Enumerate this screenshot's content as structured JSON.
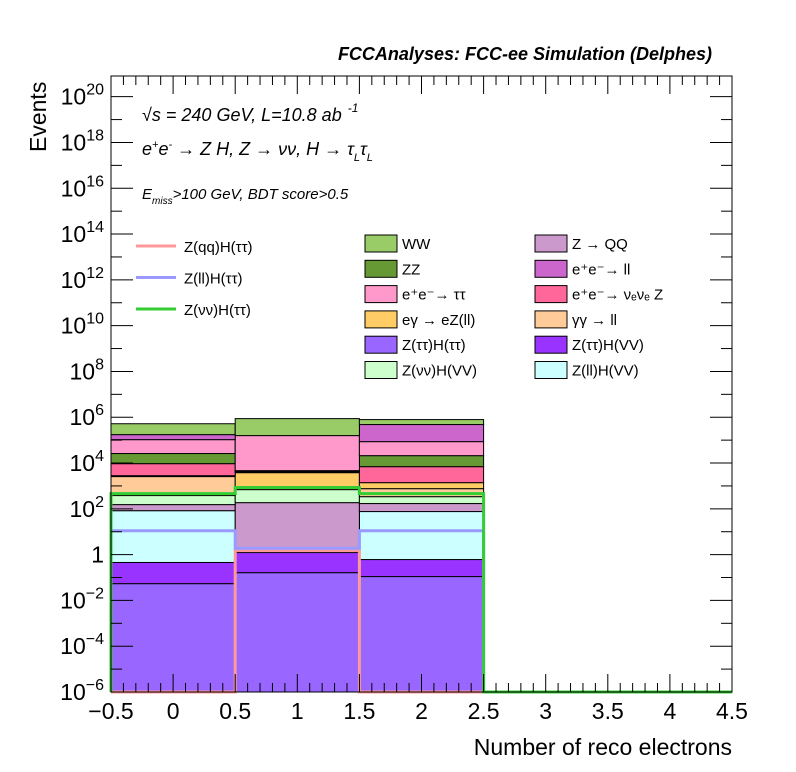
{
  "chart_data": {
    "type": "bar",
    "subtype": "stacked-histogram-log",
    "title": "FCCAnalyses: FCC-ee Simulation (Delphes)",
    "xlabel": "Number of reco electrons",
    "ylabel": "Events",
    "xlim": [
      -0.5,
      4.5
    ],
    "ylim": [
      1e-06,
      8e+20
    ],
    "yscale": "log",
    "grid": false,
    "x_ticks": [
      "−0.5",
      "0",
      "0.5",
      "1",
      "1.5",
      "2",
      "2.5",
      "3",
      "3.5",
      "4",
      "4.5"
    ],
    "x_tick_values": [
      -0.5,
      0,
      0.5,
      1,
      1.5,
      2,
      2.5,
      3,
      3.5,
      4,
      4.5
    ],
    "y_ticks": [
      {
        "value": 1e+20,
        "base": "10",
        "exp": "20"
      },
      {
        "value": 1e+18,
        "base": "10",
        "exp": "18"
      },
      {
        "value": 1e+16,
        "base": "10",
        "exp": "16"
      },
      {
        "value": 100000000000000.0,
        "base": "10",
        "exp": "14"
      },
      {
        "value": 1000000000000.0,
        "base": "10",
        "exp": "12"
      },
      {
        "value": 10000000000.0,
        "base": "10",
        "exp": "10"
      },
      {
        "value": 100000000.0,
        "base": "10",
        "exp": "8"
      },
      {
        "value": 1000000.0,
        "base": "10",
        "exp": "6"
      },
      {
        "value": 10000.0,
        "base": "10",
        "exp": "4"
      },
      {
        "value": 100.0,
        "base": "10",
        "exp": "2"
      },
      {
        "value": 1,
        "base": "1",
        "exp": ""
      },
      {
        "value": 0.01,
        "base": "10",
        "exp": "−2"
      },
      {
        "value": 0.0001,
        "base": "10",
        "exp": "−4"
      },
      {
        "value": 1e-06,
        "base": "10",
        "exp": "−6"
      }
    ],
    "bin_edges": [
      -0.5,
      0.5,
      1.5,
      2.5,
      3.5,
      4.5
    ],
    "annotations": {
      "line1_sqrt": "√",
      "line1_s": "s",
      "line1": " = 240 GeV, L=10.8 ab",
      "line1_sup": "-1",
      "line2_pre": "e",
      "line2_plus": "+",
      "line2_e2": "e",
      "line2_minus": "-",
      "line2_rest": " → Z H, Z  → νν, H → τ",
      "line2_sub1": "L",
      "line2_tau2": "τ",
      "line2_sub2": "L",
      "line3_E": "E",
      "line3_sub": "miss",
      "line3_rest": ">100 GeV, BDT score>0.5"
    },
    "stack_order": "bottom-to-top",
    "series": [
      {
        "name": "Z(ττ)H(ττ)",
        "color": "#9966ff",
        "values": [
          0.054,
          0.163,
          0.11,
          0,
          0
        ]
      },
      {
        "name": "Z(ττ)H(VV)",
        "color": "#9933ff",
        "values": [
          0.4,
          1.07,
          0.5,
          0,
          0
        ]
      },
      {
        "name": "Z(ll)H(VV)",
        "color": "#ccffff",
        "values": [
          82.5,
          0.12,
          75.4,
          0,
          0
        ]
      },
      {
        "name": "Z → QQ",
        "color": "#cc99cc",
        "values": [
          70,
          185,
          94,
          0,
          0
        ]
      },
      {
        "name": "Z(νν)H(VV)",
        "color": "#ccffcc",
        "values": [
          227,
          504,
          170,
          0,
          0
        ]
      },
      {
        "name": "γγ → ll",
        "color": "#ffcc99",
        "values": [
          2180,
          0,
          420,
          0,
          0
        ]
      },
      {
        "name": "eγ → eZ(ll)",
        "color": "#ffcc66",
        "values": [
          240,
          3110,
          630,
          0,
          0
        ]
      },
      {
        "name": "e⁺e⁻→ νₑνₑ Z",
        "color": "#ff6699",
        "values": [
          6600,
          400,
          5560,
          0,
          0
        ]
      },
      {
        "name": "ZZ",
        "color": "#669933",
        "values": [
          16600,
          450,
          14050,
          0,
          0
        ]
      },
      {
        "name": "e⁺e⁻→ ττ",
        "color": "#ff99cc",
        "values": [
          79000,
          153350,
          65000,
          0,
          0
        ]
      },
      {
        "name": "e⁺e⁻→ ll",
        "color": "#cc66cc",
        "values": [
          69000,
          0,
          394000,
          0,
          0
        ]
      },
      {
        "name": "WW",
        "color": "#99cc66",
        "values": [
          346000,
          712000,
          310000,
          0,
          0
        ]
      }
    ],
    "signal_lines": [
      {
        "name": "Z(qq)H(ττ)",
        "color": "#ff9999",
        "values": [
          1e-06,
          1.5,
          1e-06,
          1e-06,
          1e-06
        ]
      },
      {
        "name": "Z(ll)H(ττ)",
        "color": "#9999ff",
        "values": [
          11,
          1.9,
          11,
          1e-06,
          1e-06
        ]
      },
      {
        "name": "Z(νν)H(ττ)",
        "color": "#33cc33",
        "values": [
          460,
          850,
          460,
          1e-06,
          1e-06
        ]
      }
    ],
    "legend_left": {
      "placement": "upper-left",
      "entries": [
        {
          "label": "Z(qq)H(ττ)",
          "color": "#ff9999"
        },
        {
          "label": "Z(ll)H(ττ)",
          "color": "#9999ff"
        },
        {
          "label": "Z(νν)H(ττ)",
          "color": "#33cc33"
        }
      ]
    },
    "legend_right": {
      "placement": "upper-right",
      "columns": [
        [
          {
            "label": "WW",
            "color": "#99cc66"
          },
          {
            "label": "ZZ",
            "color": "#669933"
          },
          {
            "label": "e⁺e⁻→ ττ",
            "color": "#ff99cc"
          },
          {
            "label": "eγ → eZ(ll)",
            "color": "#ffcc66"
          },
          {
            "label": "Z(ττ)H(ττ)",
            "color": "#9966ff"
          },
          {
            "label": "Z(νν)H(VV)",
            "color": "#ccffcc"
          }
        ],
        [
          {
            "label": "Z → QQ",
            "color": "#cc99cc"
          },
          {
            "label": "e⁺e⁻→ ll",
            "color": "#cc66cc"
          },
          {
            "label": "e⁺e⁻→ νₑνₑ Z",
            "color": "#ff6699"
          },
          {
            "label": "γγ → ll",
            "color": "#ffcc99"
          },
          {
            "label": "Z(ττ)H(VV)",
            "color": "#9933ff"
          },
          {
            "label": "Z(ll)H(VV)",
            "color": "#ccffff"
          }
        ]
      ]
    }
  }
}
